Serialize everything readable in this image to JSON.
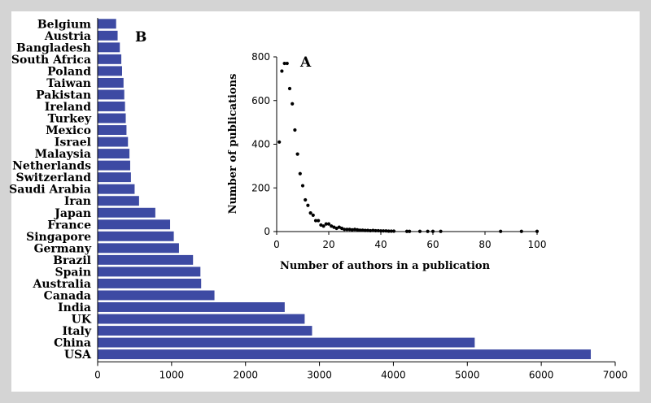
{
  "chart_data": [
    {
      "type": "bar",
      "orientation": "horizontal",
      "panel_label": "B",
      "categories": [
        "Belgium",
        "Austria",
        "Bangladesh",
        "South Africa",
        "Poland",
        "Taiwan",
        "Pakistan",
        "Ireland",
        "Turkey",
        "Mexico",
        "Israel",
        "Malaysia",
        "Netherlands",
        "Switzerland",
        "Saudi Arabia",
        "Iran",
        "Japan",
        "France",
        "Singapore",
        "Germany",
        "Brazil",
        "Spain",
        "Australia",
        "Canada",
        "India",
        "UK",
        "Italy",
        "China",
        "USA"
      ],
      "values": [
        250,
        270,
        300,
        320,
        330,
        350,
        360,
        370,
        380,
        390,
        410,
        430,
        440,
        450,
        500,
        560,
        780,
        980,
        1030,
        1100,
        1290,
        1390,
        1400,
        1580,
        2530,
        2800,
        2900,
        5100,
        6670
      ],
      "xlim": [
        0,
        7000
      ],
      "xticks": [
        0,
        1000,
        2000,
        3000,
        4000,
        5000,
        6000,
        7000
      ],
      "xlabel": "",
      "ylabel": "",
      "title": "",
      "grid": false,
      "bar_color": "#3d4aa3"
    },
    {
      "type": "scatter",
      "panel_label": "A",
      "xlabel": "Number of authors in a publication",
      "ylabel": "Number of publications",
      "xlim": [
        0,
        100
      ],
      "ylim": [
        0,
        800
      ],
      "xticks": [
        0,
        20,
        40,
        60,
        80,
        100
      ],
      "yticks": [
        0,
        200,
        400,
        600,
        800
      ],
      "grid": false,
      "points": [
        [
          1,
          410
        ],
        [
          2,
          735
        ],
        [
          3,
          770
        ],
        [
          4,
          770
        ],
        [
          5,
          655
        ],
        [
          6,
          585
        ],
        [
          7,
          465
        ],
        [
          8,
          355
        ],
        [
          9,
          265
        ],
        [
          10,
          210
        ],
        [
          11,
          145
        ],
        [
          12,
          120
        ],
        [
          13,
          85
        ],
        [
          14,
          75
        ],
        [
          15,
          50
        ],
        [
          16,
          50
        ],
        [
          17,
          30
        ],
        [
          18,
          25
        ],
        [
          19,
          35
        ],
        [
          20,
          35
        ],
        [
          21,
          25
        ],
        [
          22,
          20
        ],
        [
          23,
          15
        ],
        [
          24,
          20
        ],
        [
          25,
          15
        ],
        [
          26,
          10
        ],
        [
          27,
          10
        ],
        [
          28,
          10
        ],
        [
          29,
          8
        ],
        [
          30,
          10
        ],
        [
          31,
          8
        ],
        [
          32,
          6
        ],
        [
          33,
          6
        ],
        [
          34,
          5
        ],
        [
          35,
          5
        ],
        [
          36,
          4
        ],
        [
          37,
          5
        ],
        [
          38,
          4
        ],
        [
          39,
          4
        ],
        [
          40,
          3
        ],
        [
          41,
          3
        ],
        [
          42,
          3
        ],
        [
          43,
          2
        ],
        [
          44,
          2
        ],
        [
          45,
          2
        ],
        [
          50,
          1
        ],
        [
          51,
          1
        ],
        [
          55,
          1
        ],
        [
          58,
          1
        ],
        [
          60,
          1
        ],
        [
          63,
          1
        ],
        [
          86,
          1
        ],
        [
          94,
          1
        ],
        [
          100,
          1
        ]
      ]
    }
  ]
}
